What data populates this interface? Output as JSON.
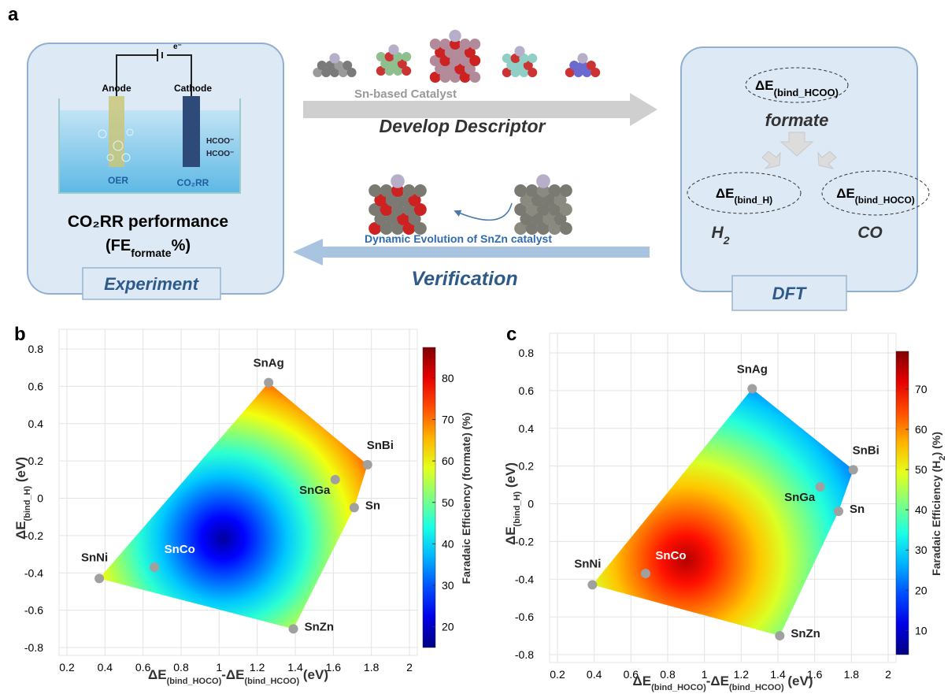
{
  "panel_a": {
    "label": "a",
    "experiment": {
      "anode": "Anode",
      "cathode": "Cathode",
      "electron": "e⁻",
      "product_1": "HCOO⁻",
      "product_2": "HCOO⁻",
      "oer": "OER",
      "co2rr": "CO₂RR",
      "result_line1": "CO₂RR performance",
      "result_line2": [
        "(FE",
        "formate",
        "%)"
      ],
      "tag": "Experiment"
    },
    "flow": {
      "catalyst": "Sn-based Catalyst",
      "forward": "Develop Descriptor",
      "evolution": "Dynamic Evolution of SnZn catalyst",
      "backward": "Verification"
    },
    "dft": {
      "descriptor_formate": [
        "ΔE",
        "(bind_HCOO)"
      ],
      "formate": "formate",
      "descriptor_h": [
        "ΔE",
        "(bind_H)"
      ],
      "descriptor_co": [
        "ΔE",
        "(bind_HOCO)"
      ],
      "h2": [
        "H",
        "2"
      ],
      "co": "CO",
      "tag": "DFT"
    }
  },
  "chart_data": [
    {
      "type": "scatter",
      "panel_label": "b",
      "x_label": [
        "ΔE",
        "(bind_HOCO)",
        "-ΔE",
        "(bind_HCOO)",
        " (eV)"
      ],
      "y_label": [
        "ΔE",
        "(bind_H)",
        " (eV)"
      ],
      "points": [
        {
          "name": "SnAg",
          "x": 1.26,
          "y": 0.62
        },
        {
          "name": "SnBi",
          "x": 1.78,
          "y": 0.18
        },
        {
          "name": "SnGa",
          "x": 1.61,
          "y": 0.1
        },
        {
          "name": "Sn",
          "x": 1.71,
          "y": -0.05
        },
        {
          "name": "SnCo",
          "x": 0.66,
          "y": -0.37
        },
        {
          "name": "SnNi",
          "x": 0.37,
          "y": -0.43
        },
        {
          "name": "SnZn",
          "x": 1.39,
          "y": -0.7
        }
      ],
      "xlim": [
        0.2,
        2
      ],
      "xticks": [
        0.2,
        0.4,
        0.6,
        0.8,
        1,
        1.2,
        1.4,
        1.6,
        1.8,
        2
      ],
      "ylim": [
        -0.8,
        0.8
      ],
      "yticks": [
        -0.8,
        -0.6,
        -0.4,
        -0.2,
        0,
        0.2,
        0.4,
        0.6,
        0.8
      ],
      "grid": true,
      "marker_color": "#a0a0a0",
      "colorbar": {
        "label": [
          "Faradaic Efficiency (formate) (%)"
        ],
        "colormap": "jet",
        "lim": [
          15,
          87
        ],
        "ticks": [
          20,
          30,
          40,
          50,
          60,
          70,
          80
        ]
      }
    },
    {
      "type": "scatter",
      "panel_label": "c",
      "x_label": [
        "ΔE",
        "(bind_HOCO)",
        "-ΔE",
        "(bind_HCOO)",
        " (eV)"
      ],
      "y_label": [
        "ΔE",
        "(bind_H)",
        " (eV)"
      ],
      "points": [
        {
          "name": "SnAg",
          "x": 1.26,
          "y": 0.61
        },
        {
          "name": "SnBi",
          "x": 1.81,
          "y": 0.18
        },
        {
          "name": "SnGa",
          "x": 1.63,
          "y": 0.09
        },
        {
          "name": "Sn",
          "x": 1.73,
          "y": -0.04
        },
        {
          "name": "SnCo",
          "x": 0.68,
          "y": -0.37
        },
        {
          "name": "SnNi",
          "x": 0.39,
          "y": -0.43
        },
        {
          "name": "SnZn",
          "x": 1.41,
          "y": -0.7
        }
      ],
      "xlim": [
        0.2,
        2
      ],
      "xticks": [
        0.2,
        0.4,
        0.6,
        0.8,
        1,
        1.2,
        1.4,
        1.6,
        1.8,
        2
      ],
      "ylim": [
        -0.8,
        0.8
      ],
      "yticks": [
        -0.8,
        -0.6,
        -0.4,
        -0.2,
        0,
        0.2,
        0.4,
        0.6,
        0.8
      ],
      "grid": true,
      "marker_color": "#a0a0a0",
      "colorbar": {
        "label": [
          "Faradaic Efficiency (H",
          "2",
          ") (%)"
        ],
        "colormap": "jet",
        "lim": [
          4,
          79
        ],
        "ticks": [
          10,
          20,
          30,
          40,
          50,
          60,
          70
        ]
      }
    }
  ]
}
